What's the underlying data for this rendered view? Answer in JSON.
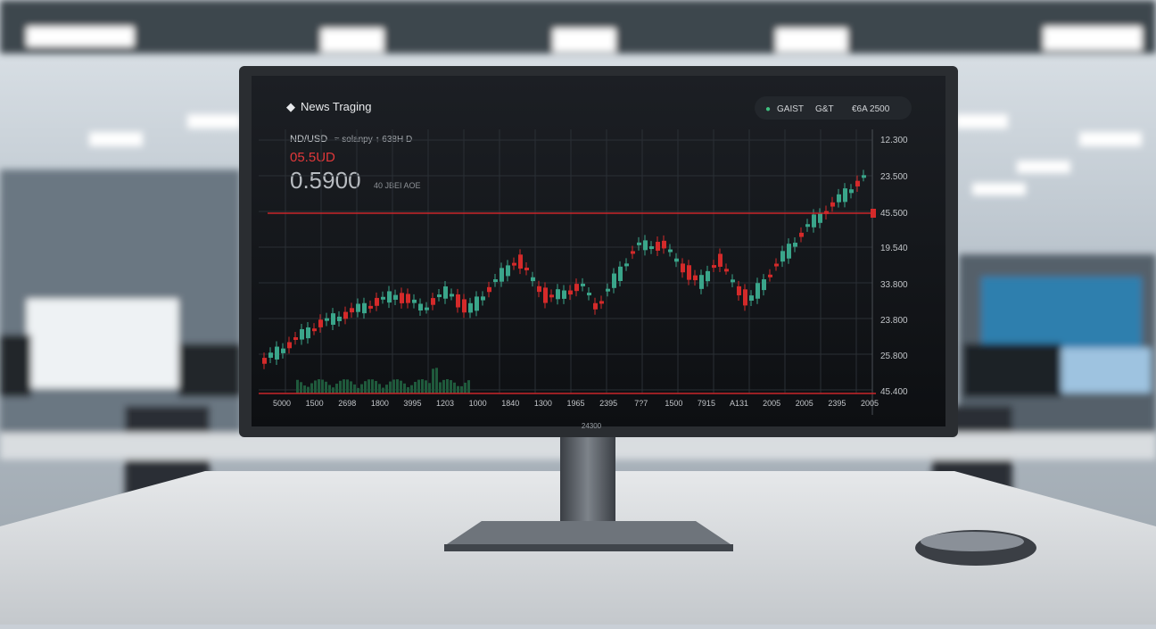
{
  "header": {
    "logo": "News Traging",
    "buttons": [
      "GAIST",
      "G&T",
      "€6A 2500"
    ]
  },
  "quote": {
    "pair": "ND/USD",
    "info": "≈ solanpy ↑ 638H D",
    "change": "05.5UD",
    "price": "0.5900",
    "note": "40 JBEI AOE"
  },
  "axis": {
    "y_labels": [
      "12.300",
      "23.500",
      "45.500",
      "19.540",
      "33.800",
      "23.800",
      "25.800",
      "45.400"
    ],
    "x_labels": [
      "5000",
      "1500",
      "2698",
      "1800",
      "3995",
      "1203",
      "1000",
      "1840",
      "1300",
      "1965",
      "2395",
      "7?7",
      "1500",
      "7915",
      "A131",
      "2005",
      "2005",
      "2395",
      "2005"
    ]
  },
  "bezel_label": "24300"
}
